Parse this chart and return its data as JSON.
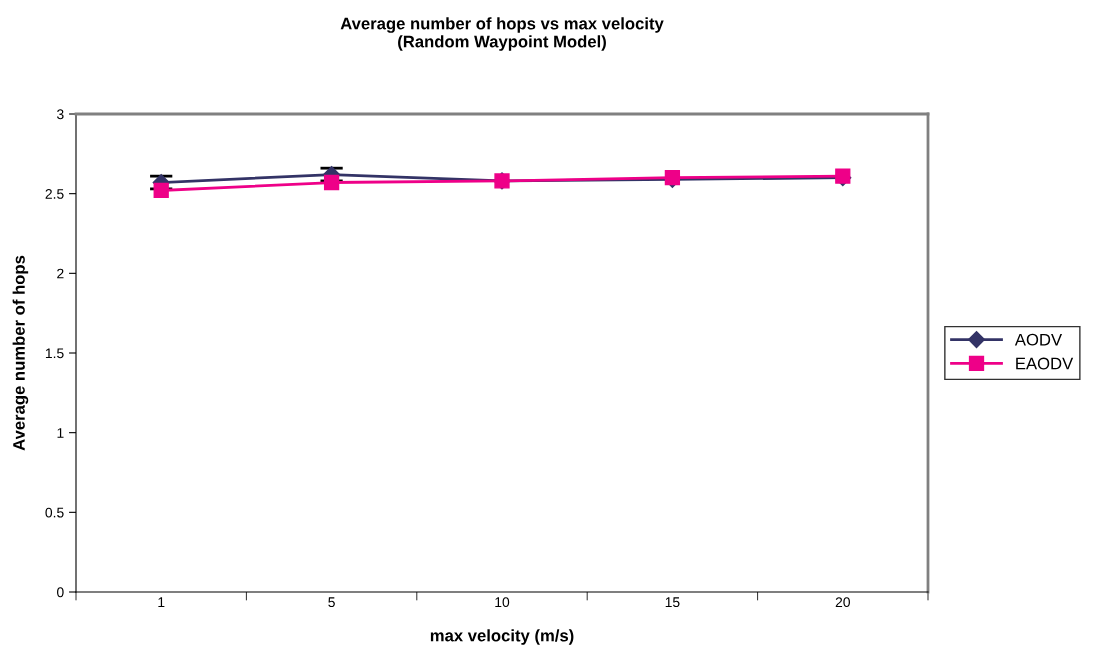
{
  "chart_data": {
    "type": "line",
    "title": "Average number of hops vs max velocity\n(Random Waypoint Model)",
    "xlabel": "max velocity (m/s)",
    "ylabel": "Average number of hops",
    "categories": [
      "1",
      "5",
      "10",
      "15",
      "20"
    ],
    "series": [
      {
        "name": "AODV",
        "color": "#333366",
        "marker": "diamond",
        "values": [
          2.57,
          2.62,
          2.58,
          2.59,
          2.6
        ],
        "errors": [
          0.04,
          0.04,
          null,
          null,
          null
        ]
      },
      {
        "name": "EAODV",
        "color": "#ee0088",
        "marker": "square",
        "values": [
          2.52,
          2.57,
          2.58,
          2.6,
          2.61
        ]
      }
    ],
    "ylim": [
      0,
      3
    ],
    "yticks": [
      0,
      0.5,
      1,
      1.5,
      2,
      2.5,
      3
    ],
    "grid": false,
    "legend": "right"
  }
}
